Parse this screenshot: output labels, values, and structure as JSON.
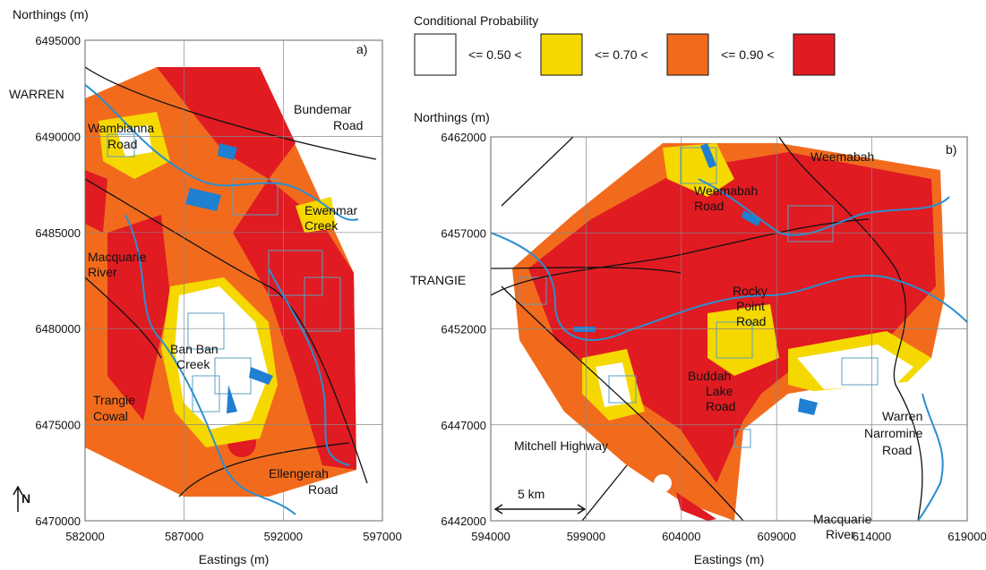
{
  "legend": {
    "title": "Conditional Probability",
    "items": [
      {
        "label": "<= 0.50 <",
        "color": "#ffffff"
      },
      {
        "label": "<= 0.70 <",
        "color": "#f5d800"
      },
      {
        "label": "<= 0.90 <",
        "color": "#f26b1d"
      },
      {
        "color": "#e01b22"
      }
    ]
  },
  "panels": [
    {
      "id_label": "a)",
      "y_axis_title": "Northings (m)",
      "x_axis_title": "Eastings (m)",
      "xticks": [
        582000,
        587000,
        592000,
        597000
      ],
      "yticks": [
        6470000,
        6475000,
        6480000,
        6485000,
        6490000,
        6495000
      ],
      "places": [
        {
          "lines": [
            "WARREN"
          ]
        },
        {
          "lines": [
            "Wambianna",
            "Road"
          ]
        },
        {
          "lines": [
            "Bundemar",
            "Road"
          ]
        },
        {
          "lines": [
            "Ewenmar",
            "Creek"
          ]
        },
        {
          "lines": [
            "Macquarie",
            "River"
          ]
        },
        {
          "lines": [
            "Ban Ban",
            "Creek"
          ]
        },
        {
          "lines": [
            "Trangie",
            "Cowal"
          ]
        },
        {
          "lines": [
            "Ellengerah",
            "Road"
          ]
        }
      ],
      "north": "N"
    },
    {
      "id_label": "b)",
      "y_axis_title": "Northings (m)",
      "x_axis_title": "Eastings (m)",
      "xticks": [
        594000,
        599000,
        604000,
        609000,
        614000,
        619000
      ],
      "yticks": [
        6442000,
        6447000,
        6452000,
        6457000,
        6462000
      ],
      "places": [
        {
          "lines": [
            "Weemabah"
          ]
        },
        {
          "lines": [
            "Weemabah",
            "Road"
          ]
        },
        {
          "lines": [
            "TRANGIE"
          ]
        },
        {
          "lines": [
            "Rocky",
            "Point",
            "Road"
          ]
        },
        {
          "lines": [
            "Buddah",
            "Lake",
            "Road"
          ]
        },
        {
          "lines": [
            "Warren",
            "Narromine",
            "Road"
          ]
        },
        {
          "lines": [
            "Mitchell Highway"
          ]
        },
        {
          "lines": [
            "Macquarie",
            "River"
          ]
        }
      ],
      "scale_bar": "5 km"
    }
  ]
}
